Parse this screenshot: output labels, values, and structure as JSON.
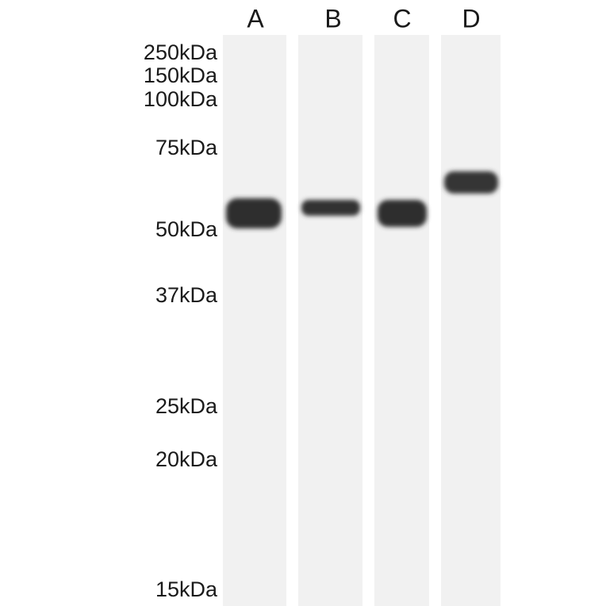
{
  "lanes": [
    {
      "label": "A"
    },
    {
      "label": "B"
    },
    {
      "label": "C"
    },
    {
      "label": "D"
    }
  ],
  "markers": [
    "250kDa",
    "150kDa",
    "100kDa",
    "75kDa",
    "50kDa",
    "37kDa",
    "25kDa",
    "20kDa",
    "15kDa"
  ]
}
